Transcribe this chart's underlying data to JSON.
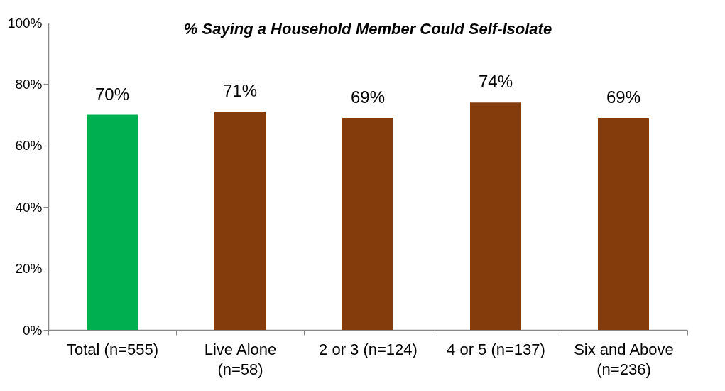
{
  "chart_data": {
    "type": "bar",
    "title": "% Saying a Household Member Could Self-Isolate",
    "categories": [
      "Total (n=555)",
      "Live Alone (n=58)",
      "2 or 3 (n=124)",
      "4 or 5 (n=137)",
      "Six and Above (n=236)"
    ],
    "values": [
      70,
      71,
      69,
      74,
      69
    ],
    "colors": [
      "#00b050",
      "#843c0c",
      "#843c0c",
      "#843c0c",
      "#843c0c"
    ],
    "value_labels": [
      "70%",
      "71%",
      "69%",
      "74%",
      "69%"
    ],
    "ylim": [
      0,
      100
    ],
    "yticks": [
      {
        "value": 0,
        "label": "0%"
      },
      {
        "value": 20,
        "label": "20%"
      },
      {
        "value": 40,
        "label": "40%"
      },
      {
        "value": 60,
        "label": "60%"
      },
      {
        "value": 80,
        "label": "80%"
      },
      {
        "value": 100,
        "label": "100%"
      }
    ],
    "grid": false
  }
}
